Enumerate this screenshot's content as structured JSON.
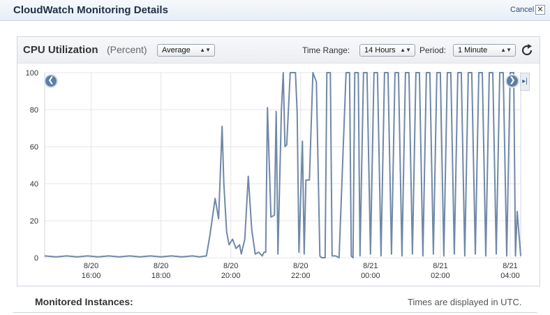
{
  "window": {
    "title": "CloudWatch Monitoring Details",
    "cancel_label": "Cancel",
    "close_glyph": "✕"
  },
  "panel": {
    "metric_title": "CPU Utilization",
    "metric_unit": "(Percent)",
    "statistic": "Average",
    "time_range_label": "Time Range:",
    "time_range": "14 Hours",
    "period_label": "Period:",
    "period": "1 Minute",
    "refresh_icon": "refresh-icon"
  },
  "nav": {
    "left_glyph": "❮",
    "right_glyph": "❯",
    "end_glyph": "▸|"
  },
  "footer": {
    "monitored_label": "Monitored Instances:",
    "utc_note": "Times are displayed in UTC."
  },
  "colors": {
    "line": "#6f88a8",
    "grid": "#e4e4e4",
    "accent": "#5e7fa3"
  },
  "chart_data": {
    "type": "line",
    "title": "CPU Utilization",
    "ylabel": "",
    "xlabel": "",
    "ylim": [
      0,
      100
    ],
    "xlim": [
      14.67,
      28.3
    ],
    "y_ticks": [
      0,
      20,
      40,
      60,
      80,
      100
    ],
    "x_ticks": [
      {
        "x": 16,
        "date": "8/20",
        "time": "16:00"
      },
      {
        "x": 18,
        "date": "8/20",
        "time": "18:00"
      },
      {
        "x": 20,
        "date": "8/20",
        "time": "20:00"
      },
      {
        "x": 22,
        "date": "8/20",
        "time": "22:00"
      },
      {
        "x": 24,
        "date": "8/21",
        "time": "00:00"
      },
      {
        "x": 26,
        "date": "8/21",
        "time": "02:00"
      },
      {
        "x": 28,
        "date": "8/21",
        "time": "04:00"
      }
    ],
    "grid": true,
    "series": [
      {
        "x": [
          14.67,
          15.0,
          15.3,
          15.6,
          15.9,
          16.2,
          16.5,
          16.8,
          17.1,
          17.4,
          17.7,
          18.0,
          18.3,
          18.6,
          18.9,
          19.1,
          19.3,
          19.4,
          19.55,
          19.65,
          19.75,
          19.8,
          19.88,
          19.95,
          20.05,
          20.15,
          20.25,
          20.3,
          20.4,
          20.5,
          20.6,
          20.7,
          20.8,
          20.9,
          20.95,
          21.0,
          21.05,
          21.15,
          21.25,
          21.3,
          21.35,
          21.45,
          21.5,
          21.55,
          21.6,
          21.7,
          21.75,
          21.85,
          21.9,
          21.95,
          22.05,
          22.1,
          22.15,
          22.25,
          22.35,
          22.45,
          22.55,
          22.6,
          22.7,
          22.75,
          22.85,
          22.9,
          23.0,
          23.1,
          23.3,
          23.4,
          23.45,
          23.5,
          23.55,
          23.65,
          23.7,
          23.8,
          23.9,
          24.0,
          24.1,
          24.2,
          24.3,
          24.4,
          24.5,
          24.6,
          24.7,
          24.8,
          24.9,
          25.0,
          25.1,
          25.2,
          25.3,
          25.4,
          25.5,
          25.6,
          25.7,
          25.8,
          25.9,
          26.0,
          26.1,
          26.2,
          26.3,
          26.4,
          26.5,
          26.6,
          26.7,
          26.8,
          26.9,
          27.0,
          27.1,
          27.2,
          27.3,
          27.4,
          27.5,
          27.6,
          27.7,
          27.8,
          27.9,
          28.0,
          28.1,
          28.15,
          28.2,
          28.3
        ],
        "y": [
          1,
          0.5,
          1,
          0.5,
          1,
          0.5,
          1,
          0.5,
          1,
          0.5,
          1,
          0.5,
          1,
          0.5,
          1,
          0.5,
          1,
          12,
          32,
          21,
          71,
          40,
          14,
          7,
          10,
          5,
          7,
          2,
          10,
          44,
          15,
          2,
          3,
          1,
          3,
          3,
          81,
          22,
          23,
          79,
          2,
          80,
          100,
          60,
          61,
          100,
          100,
          100,
          78,
          3,
          63,
          2,
          42,
          42,
          100,
          95,
          1,
          0,
          0,
          100,
          100,
          1,
          1,
          0,
          100,
          100,
          1,
          0,
          100,
          100,
          1,
          100,
          100,
          2,
          100,
          100,
          1,
          100,
          100,
          2,
          100,
          100,
          1,
          100,
          100,
          2,
          100,
          100,
          1,
          100,
          100,
          2,
          100,
          100,
          1,
          100,
          100,
          2,
          100,
          100,
          1,
          100,
          100,
          2,
          100,
          100,
          1,
          100,
          100,
          2,
          100,
          100,
          1,
          100,
          100,
          1,
          25,
          1
        ]
      }
    ]
  }
}
